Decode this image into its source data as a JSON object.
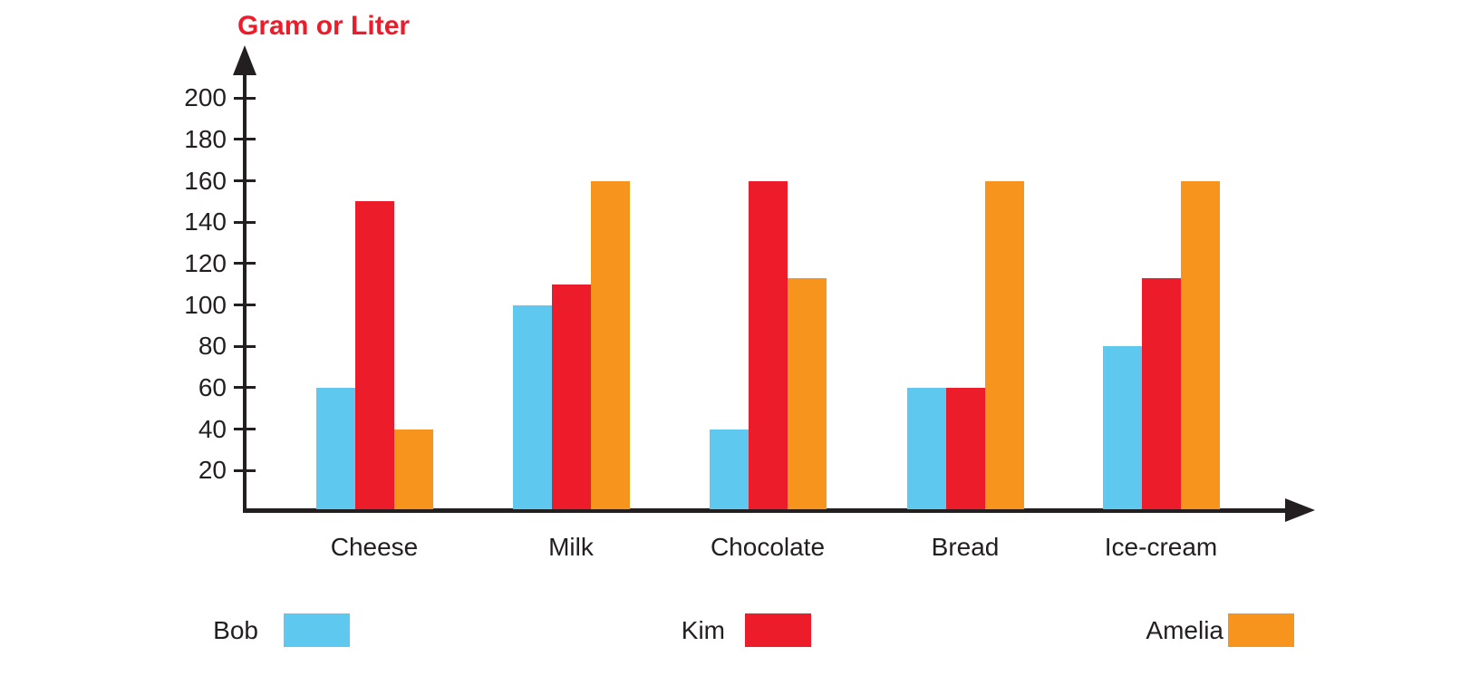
{
  "chart_data": {
    "type": "bar",
    "title": "Gram or Liter",
    "title_color": "#ec1c2b",
    "categories": [
      "Cheese",
      "Milk",
      "Chocolate",
      "Bread",
      "Ice-cream"
    ],
    "series": [
      {
        "name": "Bob",
        "color": "#5fc8ef",
        "values": [
          60,
          100,
          40,
          60,
          80
        ]
      },
      {
        "name": "Kim",
        "color": "#ec1c2b",
        "values": [
          150,
          110,
          160,
          60,
          113
        ]
      },
      {
        "name": "Amelia",
        "color": "#f6941e",
        "values": [
          40,
          160,
          113,
          160,
          160
        ]
      }
    ],
    "y_ticks": [
      20,
      40,
      60,
      80,
      100,
      120,
      140,
      160,
      180,
      200
    ],
    "ylim": [
      0,
      210
    ],
    "xlabel": "",
    "ylabel": "Gram or Liter",
    "grid": false,
    "legend_position": "bottom"
  }
}
